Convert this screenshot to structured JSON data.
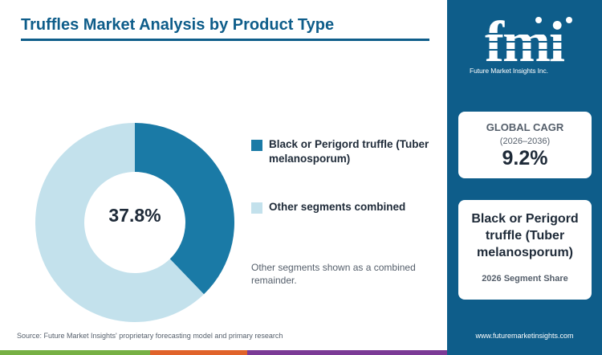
{
  "title": "Truffles Market Analysis by Product Type",
  "center_label": "37.8%",
  "legend": [
    {
      "label": "Black or Perigord truffle (Tuber melanosporum)",
      "color": "#1a7aa6"
    },
    {
      "label": "Other segments combined",
      "color": "#c3e1ec"
    }
  ],
  "note": "Other segments shown as a combined remainder.",
  "source": "Source: Future Market Insights' proprietary forecasting model and primary research",
  "logo": {
    "text": "fmi",
    "tagline": "Future Market Insights Inc."
  },
  "cagr": {
    "title": "GLOBAL CAGR",
    "period": "(2026–2036)",
    "value": "9.2%"
  },
  "segment_card": {
    "name": "Black or Perigord truffle (Tuber melanosporum)",
    "label": "2026 Segment Share"
  },
  "website": "www.futuremarketinsights.com",
  "bottom_bar_colors": [
    "#76b043",
    "#e0632a",
    "#7b3a96"
  ],
  "colors": {
    "brand": "#0e5d8a",
    "text": "#1e2a38",
    "muted": "#555f6b"
  },
  "chart_data": {
    "type": "pie",
    "donut": true,
    "categories": [
      "Black or Perigord truffle (Tuber melanosporum)",
      "Other segments combined"
    ],
    "values": [
      37.8,
      62.2
    ],
    "colors": [
      "#1a7aa6",
      "#c3e1ec"
    ],
    "title": "Truffles Market Analysis by Product Type",
    "legend_position": "right"
  }
}
